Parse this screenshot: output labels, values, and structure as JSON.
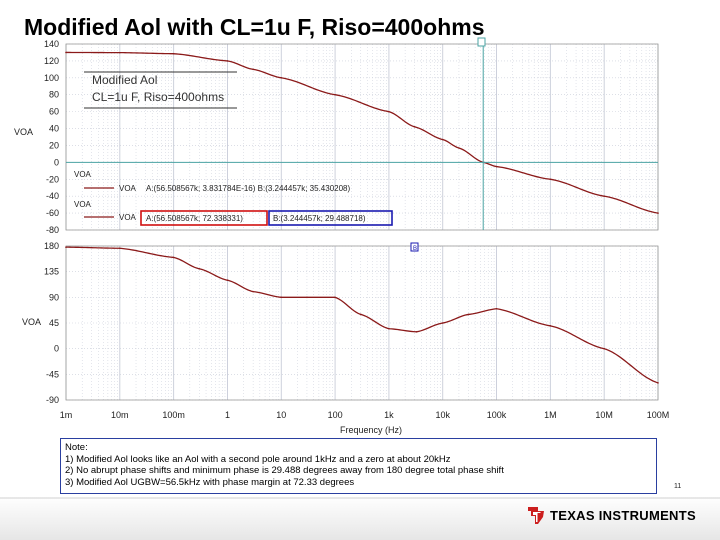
{
  "slide": {
    "title": "Modified Aol with CL=1u F, Riso=400ohms",
    "page_number": "11",
    "footer_logo": "TEXAS INSTRUMENTS",
    "footer_logo_icon": "ti-logo-icon"
  },
  "notes": {
    "heading": "Note:",
    "items": [
      "1)  Modified Aol looks like an Aol with a second pole around 1kHz and a zero at about 20kHz",
      "2)  No abrupt phase shifts and minimum phase is 29.488 degrees away from 180 degree total phase shift",
      "3)  Modified Aol UGBW=56.5kHz with phase margin at 72.33 degrees"
    ]
  },
  "colors": {
    "trace": "#8b1a1a",
    "grid": "#c8ccd8",
    "cursor": "#4aa3a3",
    "box_a": "#d01010",
    "box_b": "#1a1ab0",
    "note_border": "#2a3fa0",
    "logo_red": "#cc1f1f"
  },
  "chart_data": {
    "type": "line",
    "x_scale": "log",
    "x_ticks": [
      "1m",
      "10m",
      "100m",
      "1",
      "10",
      "100",
      "1k",
      "10k",
      "100k",
      "1M",
      "10M",
      "100M"
    ],
    "x_range": [
      0.001,
      100000000
    ],
    "xlabel": "Frequency (Hz)",
    "cursor_a_freq": 56508.567,
    "cursor_b_freq": 3244.457,
    "cursor_b_marker": "B",
    "top": {
      "ylabel": "VOA",
      "ylim": [
        -80,
        140
      ],
      "y_ticks": [
        "140",
        "120",
        "100",
        "80",
        "60",
        "40",
        "20",
        "0",
        "-20",
        "-40",
        "-60",
        "-80"
      ],
      "inset_title": [
        "Modified Aol",
        "CL=1u F, Riso=400ohms"
      ],
      "x": [
        0.001,
        0.01,
        0.1,
        1,
        3,
        10,
        100,
        1000,
        3000,
        10000,
        20000,
        56500,
        100000,
        1000000,
        10000000,
        100000000
      ],
      "y": [
        130,
        129.8,
        128.5,
        120,
        110,
        100,
        80,
        60,
        42,
        27,
        17,
        0,
        -5,
        -20,
        -40,
        -60
      ]
    },
    "bottom": {
      "ylabel": "VOA",
      "ylim": [
        -90,
        180
      ],
      "y_ticks": [
        "180",
        "135",
        "90",
        "45",
        "0",
        "-45",
        "-90"
      ],
      "x": [
        0.001,
        0.01,
        0.1,
        0.3,
        1,
        3,
        10,
        30,
        100,
        300,
        1000,
        3244,
        10000,
        30000,
        100000,
        1000000,
        10000000,
        100000000
      ],
      "y": [
        178,
        176,
        160,
        140,
        120,
        100,
        90,
        90,
        90,
        60,
        35,
        29.5,
        45,
        60,
        70,
        40,
        0,
        -60
      ]
    },
    "legend": [
      {
        "label": "VOA",
        "text": "A:(56.508567k; 3.831784E-16)   B:(3.244457k; 35.430208)"
      },
      {
        "label": "VOA",
        "cursor_a": "A:(56.508567k; 72.338331)",
        "cursor_b": "B:(3.244457k; 29.488718)"
      }
    ]
  }
}
